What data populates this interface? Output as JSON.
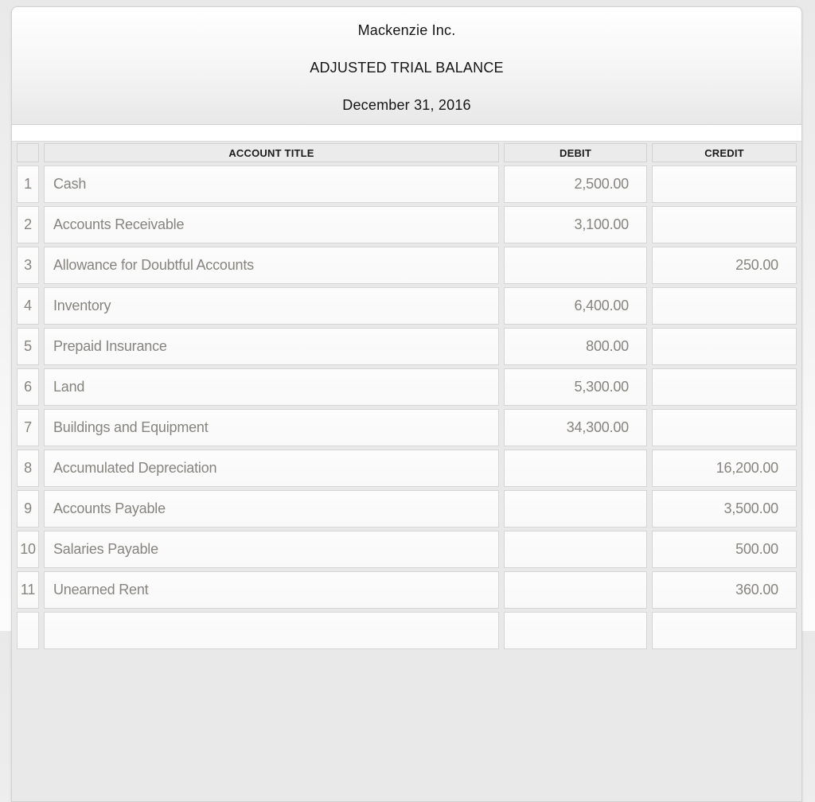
{
  "report": {
    "company": "Mackenzie Inc.",
    "title": "ADJUSTED TRIAL BALANCE",
    "date": "December 31, 2016"
  },
  "table": {
    "headers": {
      "row_number": "",
      "account": "ACCOUNT TITLE",
      "debit": "DEBIT",
      "credit": "CREDIT"
    },
    "rows": [
      {
        "num": "1",
        "account": "Cash",
        "debit": "2,500.00",
        "credit": ""
      },
      {
        "num": "2",
        "account": "Accounts Receivable",
        "debit": "3,100.00",
        "credit": ""
      },
      {
        "num": "3",
        "account": "Allowance for Doubtful Accounts",
        "debit": "",
        "credit": "250.00"
      },
      {
        "num": "4",
        "account": "Inventory",
        "debit": "6,400.00",
        "credit": ""
      },
      {
        "num": "5",
        "account": "Prepaid Insurance",
        "debit": "800.00",
        "credit": ""
      },
      {
        "num": "6",
        "account": "Land",
        "debit": "5,300.00",
        "credit": ""
      },
      {
        "num": "7",
        "account": "Buildings and Equipment",
        "debit": "34,300.00",
        "credit": ""
      },
      {
        "num": "8",
        "account": "Accumulated Depreciation",
        "debit": "",
        "credit": "16,200.00"
      },
      {
        "num": "9",
        "account": "Accounts Payable",
        "debit": "",
        "credit": "3,500.00"
      },
      {
        "num": "10",
        "account": "Salaries Payable",
        "debit": "",
        "credit": "500.00"
      },
      {
        "num": "11",
        "account": "Unearned Rent",
        "debit": "",
        "credit": "360.00"
      },
      {
        "num": "",
        "account": "",
        "debit": "",
        "credit": ""
      }
    ]
  },
  "colors": {
    "card_background": "#e9e9e9",
    "header_gradient_top": "#ffffff",
    "header_gradient_bottom": "#e8e8e8",
    "table_header_bg": "#ebebeb",
    "cell_bg": "#fbfbfb",
    "cell_border": "#d5d5d5",
    "title_text": "#151515",
    "data_text": "#86847f",
    "row_number_text": "#7d7d7d"
  }
}
